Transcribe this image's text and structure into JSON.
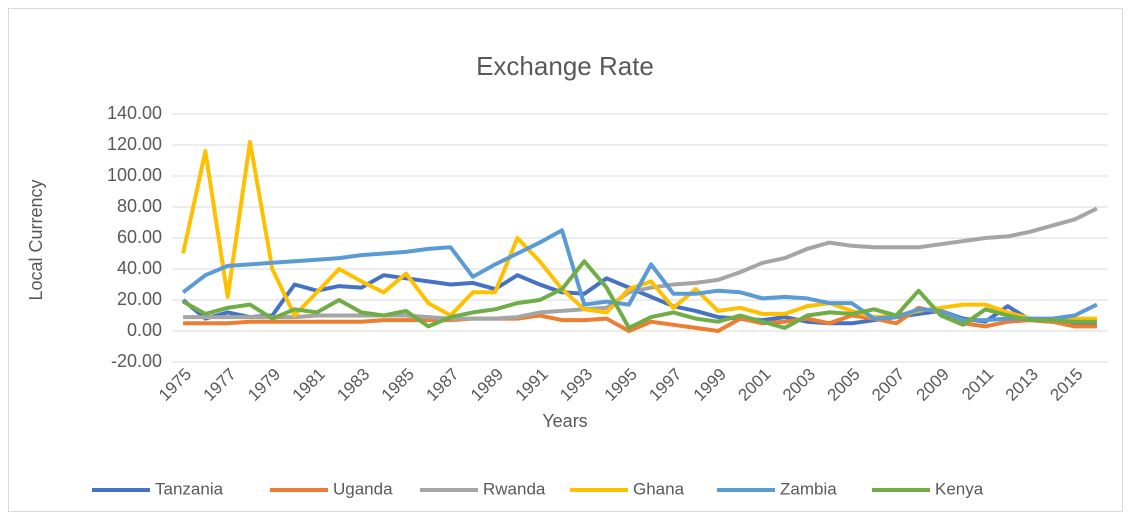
{
  "chart_data": {
    "type": "line",
    "title": "Exchange Rate",
    "x_label": "Years",
    "y_label": "Local Currency",
    "categories": [
      "1975",
      null,
      "1977",
      null,
      "1979",
      null,
      "1981",
      null,
      "1983",
      null,
      "1985",
      null,
      "1987",
      null,
      "1989",
      null,
      "1991",
      null,
      "1993",
      null,
      "1995",
      null,
      "1997",
      null,
      "1999",
      null,
      "2001",
      null,
      "2003",
      null,
      "2005",
      null,
      "2007",
      null,
      "2009",
      null,
      "2011",
      null,
      "2013",
      null,
      "2015",
      null
    ],
    "ylim": [
      -20,
      140
    ],
    "yticks": [
      {
        "value": -20,
        "label": "-20.00"
      },
      {
        "value": 0,
        "label": "0.00"
      },
      {
        "value": 20,
        "label": "20.00"
      },
      {
        "value": 40,
        "label": "40.00"
      },
      {
        "value": 60,
        "label": "60.00"
      },
      {
        "value": 80,
        "label": "80.00"
      },
      {
        "value": 100,
        "label": "100.00"
      },
      {
        "value": 120,
        "label": "120.00"
      },
      {
        "value": 140,
        "label": "140.00"
      }
    ],
    "grid": true,
    "legend": "bottom",
    "series": [
      {
        "name": "Tanzania",
        "color": "#4472c4",
        "values": [
          20,
          8,
          12,
          9,
          10,
          30,
          26,
          29,
          28,
          36,
          34,
          32,
          30,
          31,
          27,
          36,
          30,
          25,
          24,
          34,
          28,
          22,
          16,
          13,
          9,
          8,
          7,
          9,
          6,
          5,
          5,
          7,
          9,
          11,
          13,
          8,
          6,
          16,
          7,
          6,
          5,
          5
        ]
      },
      {
        "name": "Uganda",
        "color": "#ed7d31",
        "values": [
          5,
          5,
          5,
          6,
          6,
          6,
          6,
          6,
          6,
          7,
          7,
          7,
          7,
          8,
          8,
          8,
          10,
          7,
          7,
          8,
          0,
          6,
          4,
          2,
          0,
          8,
          5,
          6,
          8,
          5,
          10,
          8,
          5,
          15,
          12,
          5,
          3,
          6,
          7,
          6,
          3,
          3
        ]
      },
      {
        "name": "Rwanda",
        "color": "#a5a5a5",
        "values": [
          9,
          9,
          9,
          9,
          9,
          9,
          10,
          10,
          10,
          10,
          10,
          9,
          8,
          8,
          8,
          9,
          12,
          13,
          14,
          15,
          25,
          28,
          30,
          31,
          33,
          38,
          44,
          47,
          53,
          57,
          55,
          54,
          54,
          54,
          56,
          58,
          60,
          61,
          64,
          68,
          72,
          79
        ]
      },
      {
        "name": "Ghana",
        "color": "#ffc000",
        "values": [
          50,
          116,
          22,
          122,
          40,
          10,
          25,
          40,
          32,
          25,
          37,
          18,
          10,
          25,
          25,
          60,
          45,
          27,
          14,
          12,
          27,
          32,
          15,
          27,
          13,
          15,
          11,
          11,
          16,
          18,
          13,
          9,
          10,
          13,
          15,
          17,
          17,
          12,
          8,
          7,
          8,
          8
        ]
      },
      {
        "name": "Zambia",
        "color": "#5b9bd5",
        "values": [
          25,
          36,
          42,
          43,
          44,
          45,
          46,
          47,
          49,
          50,
          51,
          53,
          54,
          35,
          43,
          50,
          57,
          65,
          17,
          19,
          17,
          43,
          24,
          24,
          26,
          25,
          21,
          22,
          21,
          18,
          18,
          8,
          9,
          14,
          13,
          7,
          7,
          8,
          8,
          8,
          10,
          17
        ]
      },
      {
        "name": "Kenya",
        "color": "#70ad47",
        "values": [
          19,
          11,
          15,
          17,
          8,
          14,
          12,
          20,
          12,
          10,
          13,
          3,
          9,
          12,
          14,
          18,
          20,
          27,
          45,
          28,
          2,
          9,
          12,
          8,
          6,
          10,
          6,
          2,
          10,
          12,
          11,
          14,
          10,
          26,
          10,
          4,
          14,
          10,
          7,
          7,
          6,
          6
        ]
      }
    ]
  }
}
